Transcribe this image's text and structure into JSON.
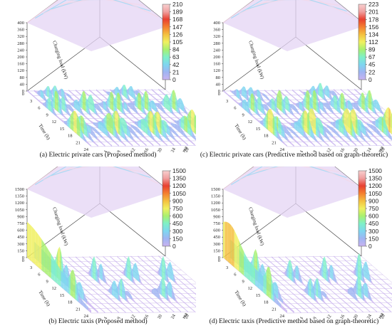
{
  "chart_data": [
    {
      "type": "surface3d",
      "caption": "(a) Electric private cars (Proposed method)",
      "zlabel": "Charging load (kW)",
      "xlabel": "Time (h)",
      "ylabel": "Area",
      "z_ticks": [
        0,
        40,
        80,
        120,
        160,
        200,
        240,
        280,
        320,
        360,
        400
      ],
      "x_ticks": [
        0,
        3,
        6,
        9,
        12,
        15,
        18,
        21,
        24
      ],
      "y_ticks": [
        4,
        8,
        12,
        16,
        20,
        24,
        28,
        32,
        36,
        40
      ],
      "colorbar_ticks": [
        0,
        21,
        42,
        63,
        84,
        105,
        126,
        147,
        168,
        189,
        210
      ],
      "colorbar_range": [
        0,
        210
      ],
      "peak_load": 210
    },
    {
      "type": "surface3d",
      "caption": "(c) Electric private cars (Predictive method based on graph-theoretic)",
      "zlabel": "Charging load (kW)",
      "xlabel": "Time (h)",
      "ylabel": "Area",
      "z_ticks": [
        0,
        40,
        80,
        120,
        160,
        200,
        240,
        280,
        320,
        360,
        400
      ],
      "x_ticks": [
        0,
        3,
        6,
        9,
        12,
        15,
        18,
        21,
        24
      ],
      "y_ticks": [
        4,
        8,
        12,
        16,
        20,
        24,
        28,
        32,
        36,
        40
      ],
      "colorbar_ticks": [
        0,
        22,
        45,
        67,
        89,
        112,
        134,
        156,
        178,
        201,
        223
      ],
      "colorbar_range": [
        0,
        223
      ],
      "peak_load": 223
    },
    {
      "type": "surface3d",
      "caption": "(b) Electric taxis (Proposed method)",
      "zlabel": "Charging load (kW)",
      "xlabel": "Time (h)",
      "ylabel": "Area",
      "z_ticks": [
        0,
        150,
        300,
        450,
        600,
        750,
        900,
        1050,
        1200,
        1350,
        1500
      ],
      "x_ticks": [
        0,
        3,
        6,
        9,
        12,
        15,
        18,
        21,
        24
      ],
      "y_ticks": [
        4,
        8,
        12,
        16,
        20,
        24,
        28,
        32,
        36,
        40
      ],
      "colorbar_ticks": [
        0,
        150,
        300,
        450,
        600,
        750,
        900,
        1050,
        1200,
        1350,
        1500
      ],
      "colorbar_range": [
        0,
        1500
      ],
      "peak_load": 1500
    },
    {
      "type": "surface3d",
      "caption": "(d)  Electric taxis (Predictive method based on graph-theoretic)",
      "zlabel": "Charging load (kW)",
      "xlabel": "Time (h)",
      "ylabel": "Area",
      "z_ticks": [
        0,
        150,
        300,
        450,
        600,
        750,
        900,
        1050,
        1200,
        1350,
        1500
      ],
      "x_ticks": [
        0,
        3,
        6,
        9,
        12,
        15,
        18,
        21,
        24
      ],
      "y_ticks": [
        4,
        8,
        12,
        16,
        20,
        24,
        28,
        32,
        36,
        40
      ],
      "colorbar_ticks": [
        0,
        150,
        300,
        450,
        600,
        750,
        900,
        1050,
        1200,
        1350,
        1500
      ],
      "colorbar_range": [
        0,
        1500
      ],
      "peak_load": 1500
    }
  ],
  "colormap": [
    "#c9b3f0",
    "#9fb4f2",
    "#7fd6f0",
    "#7ff0c8",
    "#a8f070",
    "#f0f060",
    "#f4c040",
    "#f48030",
    "#e84030",
    "#f0a0a0",
    "#f8d0d0"
  ]
}
